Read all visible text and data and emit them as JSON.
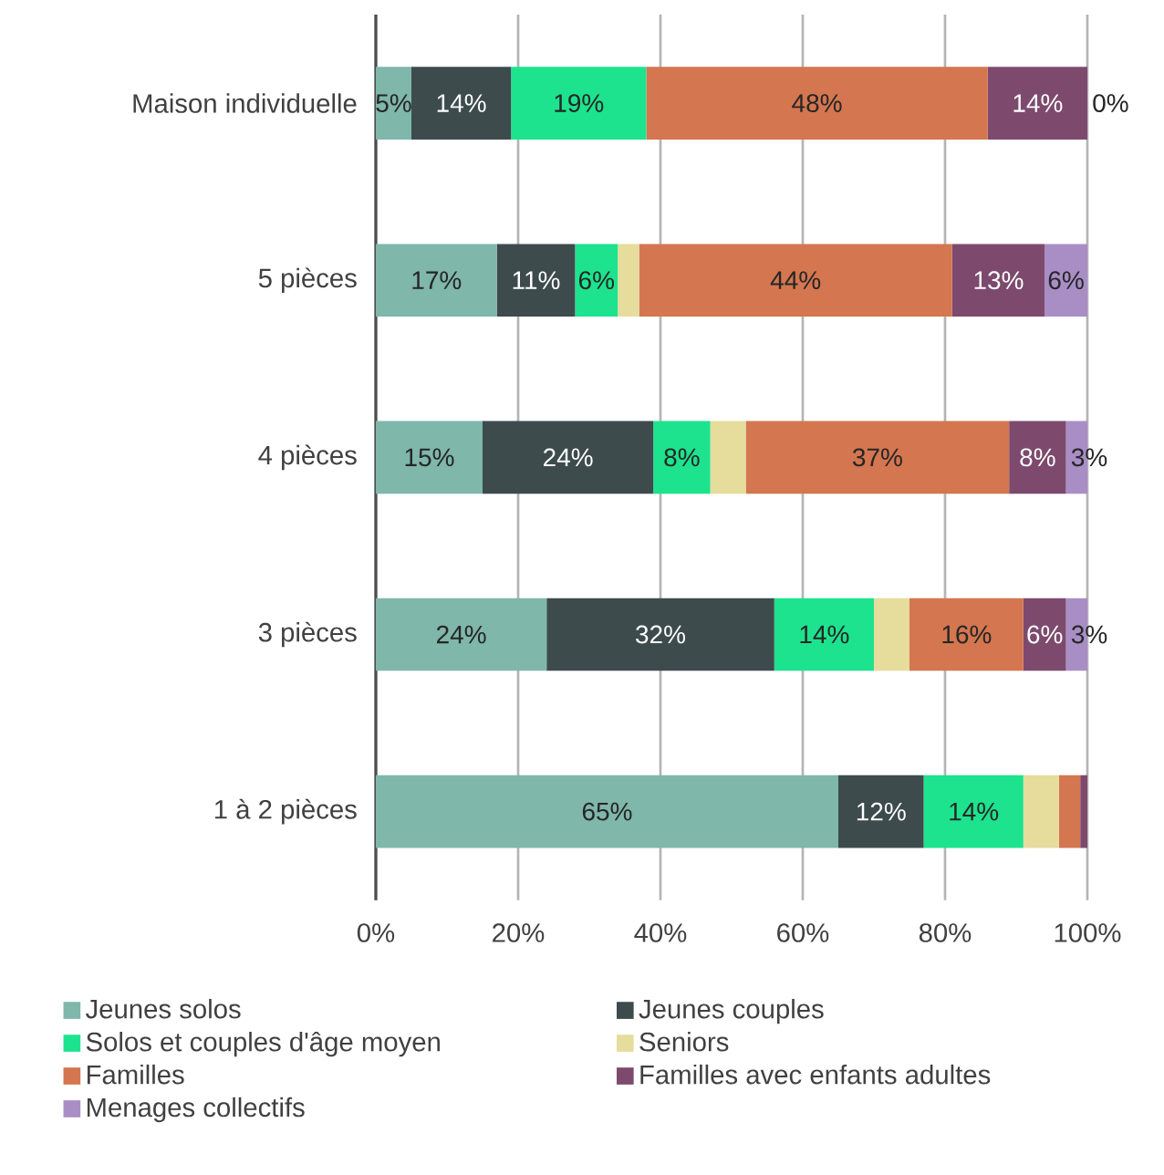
{
  "chart_data": {
    "type": "bar",
    "orientation": "horizontal",
    "stacked": true,
    "categories": [
      "Maison individuelle",
      "5 pièces",
      "4 pièces",
      "3 pièces",
      "1 à 2 pièces"
    ],
    "series": [
      {
        "name": "Jeunes solos",
        "color": "#7fb7aa",
        "values": [
          5,
          17,
          15,
          24,
          65
        ],
        "value_labels": [
          "5%",
          "17%",
          "15%",
          "24%",
          "65%"
        ]
      },
      {
        "name": "Jeunes couples",
        "color": "#3d4b4d",
        "values": [
          14,
          11,
          24,
          32,
          12
        ],
        "value_labels": [
          "14%",
          "11%",
          "24%",
          "32%",
          "12%"
        ]
      },
      {
        "name": "Solos et couples d'âge moyen",
        "color": "#1de38e",
        "values": [
          19,
          6,
          8,
          14,
          14
        ],
        "value_labels": [
          "19%",
          "6%",
          "8%",
          "14%",
          "14%"
        ]
      },
      {
        "name": "Seniors",
        "color": "#e6dc9c",
        "values": [
          0,
          3,
          5,
          5,
          5
        ],
        "value_labels": [
          null,
          null,
          null,
          null,
          null
        ]
      },
      {
        "name": "Familles",
        "color": "#d47650",
        "values": [
          48,
          44,
          37,
          16,
          3
        ],
        "value_labels": [
          "48%",
          "44%",
          "37%",
          "16%",
          null
        ]
      },
      {
        "name": "Familles avec enfants adultes",
        "color": "#7d4a6e",
        "values": [
          14,
          13,
          8,
          6,
          1
        ],
        "value_labels": [
          "14%",
          "13%",
          "8%",
          "6%",
          null
        ]
      },
      {
        "name": "Menages collectifs",
        "color": "#a98ec6",
        "values": [
          0,
          6,
          3,
          3,
          0
        ],
        "value_labels": [
          "0%",
          "6%",
          "3%",
          "3%",
          null
        ]
      }
    ],
    "xlim": [
      0,
      100
    ],
    "xticks": [
      {
        "value": 0,
        "label": "0%"
      },
      {
        "value": 20,
        "label": "20%"
      },
      {
        "value": 40,
        "label": "40%"
      },
      {
        "value": 60,
        "label": "60%"
      },
      {
        "value": 80,
        "label": "80%"
      },
      {
        "value": 100,
        "label": "100%"
      }
    ],
    "grid": "x",
    "legend": "bottom"
  }
}
